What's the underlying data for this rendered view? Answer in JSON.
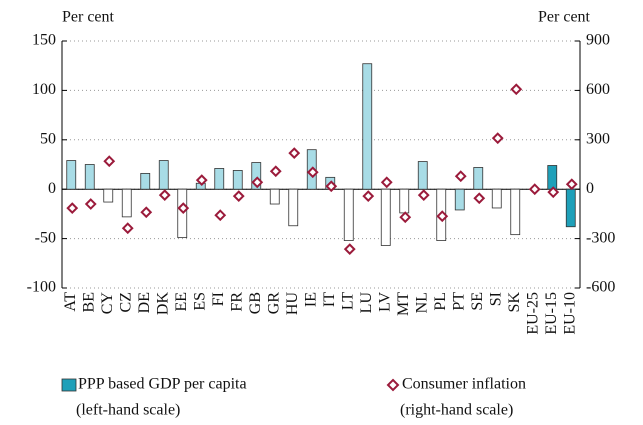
{
  "chart_data": {
    "type": "bar",
    "y_label": "Per cent",
    "y2_label": "Per cent",
    "categories": [
      "AT",
      "BE",
      "CY",
      "CZ",
      "DE",
      "DK",
      "EE",
      "ES",
      "FI",
      "FR",
      "GB",
      "GR",
      "HU",
      "IE",
      "IT",
      "LT",
      "LU",
      "LV",
      "MT",
      "NL",
      "PL",
      "PT",
      "SE",
      "SI",
      "SK",
      "EU-25",
      "EU-15",
      "EU-10"
    ],
    "series": [
      {
        "name": "PPP based GDP per capita",
        "scale_note": "(left-hand scale)",
        "type": "bar",
        "color": "#1fa0b9",
        "colors": [
          "#a8dce6",
          "#a8dce6",
          "#ffffff",
          "#ffffff",
          "#a8dce6",
          "#a8dce6",
          "#ffffff",
          "#a8dce6",
          "#a8dce6",
          "#a8dce6",
          "#a8dce6",
          "#ffffff",
          "#ffffff",
          "#a8dce6",
          "#a8dce6",
          "#ffffff",
          "#a8dce6",
          "#ffffff",
          "#ffffff",
          "#a8dce6",
          "#ffffff",
          "#a8dce6",
          "#a8dce6",
          "#ffffff",
          "#ffffff",
          "#1fa0b9",
          "#1fa0b9",
          "#1fa0b9"
        ],
        "values": [
          29,
          25,
          -13,
          -28,
          16,
          29,
          -49,
          6,
          21,
          19,
          27,
          -15,
          -37,
          40,
          12,
          -52,
          127,
          -57,
          -24,
          28,
          -52,
          -21,
          22,
          -19,
          -46,
          0,
          24,
          -38
        ]
      },
      {
        "name": "Consumer inflation",
        "scale_note": "(right-hand scale)",
        "type": "scatter",
        "axis": "y2",
        "color": "#9b1b3b",
        "values": [
          -115,
          -90,
          170,
          -237,
          -140,
          -36,
          -115,
          55,
          -158,
          -42,
          42,
          109,
          219,
          103,
          18,
          -364,
          -42,
          42,
          -170,
          -36,
          -164,
          79,
          -55,
          310,
          607,
          0,
          -18,
          30
        ]
      }
    ],
    "ylim": [
      -100,
      150
    ],
    "yticks": [
      150,
      100,
      50,
      0,
      -50,
      -100
    ],
    "y2lim": [
      -600,
      900
    ],
    "y2ticks": [
      900,
      600,
      300,
      0,
      -300,
      -600
    ],
    "grid": true
  }
}
